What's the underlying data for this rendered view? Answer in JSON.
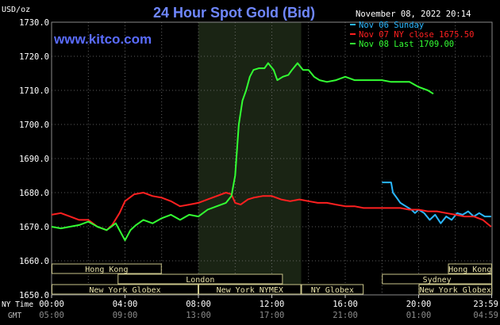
{
  "header": {
    "title": "24 Hour Spot Gold (Bid)",
    "datetime": "November 08, 2022 20:14",
    "watermark": "www.kitco.com",
    "unit_label": "USD/oz"
  },
  "legend": [
    {
      "label": "Nov 06 Sunday",
      "color": "#2ab7ff"
    },
    {
      "label": "Nov 07 NY close 1675.50",
      "color": "#ff2020"
    },
    {
      "label": "Nov 08 Last 1709.00",
      "color": "#33ff33"
    }
  ],
  "sessions": [
    {
      "name": "Hong Kong",
      "start": 0.0,
      "end": 6.0,
      "row": 0
    },
    {
      "name": "Hong Kong",
      "start": 21.6,
      "end": 24.0,
      "row": 0
    },
    {
      "name": "London",
      "start": 3.6,
      "end": 12.6,
      "row": 1
    },
    {
      "name": "Sydney",
      "start": 18.0,
      "end": 24.0,
      "row": 1
    },
    {
      "name": "New York Globex",
      "start": 0.0,
      "end": 8.0,
      "row": 2
    },
    {
      "name": "New York NYMEX",
      "start": 8.0,
      "end": 13.6,
      "row": 2
    },
    {
      "name": "NY Globex",
      "start": 13.6,
      "end": 17.0,
      "row": 2
    },
    {
      "name": "New York Globex",
      "start": 20.0,
      "end": 24.0,
      "row": 2
    }
  ],
  "time_axis": {
    "ny_label": "NY Time",
    "gmt_label": "GMT",
    "ny_ticks": [
      "00:00",
      "04:00",
      "08:00",
      "12:00",
      "16:00",
      "20:00",
      "23:59"
    ],
    "gmt_ticks": [
      "05:00",
      "09:00",
      "13:00",
      "17:00",
      "21:00",
      "01:00",
      "04:59"
    ]
  },
  "chart_data": {
    "type": "line",
    "title": "24 Hour Spot Gold (Bid)",
    "ylabel": "USD/oz",
    "xlabel": "NY Time",
    "ylim": [
      1650,
      1730
    ],
    "xlim": [
      0,
      24
    ],
    "y_ticks": [
      "1650.0",
      "1660.0",
      "1670.0",
      "1680.0",
      "1690.0",
      "1700.0",
      "1710.0",
      "1720.0",
      "1730.0"
    ],
    "grid": true,
    "legend_position": "top-right",
    "highlight_hours": [
      8.0,
      13.6
    ],
    "series": [
      {
        "name": "Nov 06 Sunday",
        "color": "#2ab7ff",
        "points": [
          [
            18.0,
            1683.0
          ],
          [
            18.5,
            1683.0
          ],
          [
            18.6,
            1680.0
          ],
          [
            18.8,
            1678.5
          ],
          [
            19.0,
            1677.0
          ],
          [
            19.3,
            1676.0
          ],
          [
            19.6,
            1675.0
          ],
          [
            19.8,
            1674.0
          ],
          [
            20.0,
            1675.0
          ],
          [
            20.3,
            1674.0
          ],
          [
            20.6,
            1672.0
          ],
          [
            20.9,
            1673.5
          ],
          [
            21.2,
            1671.0
          ],
          [
            21.5,
            1673.0
          ],
          [
            21.8,
            1672.0
          ],
          [
            22.1,
            1674.0
          ],
          [
            22.4,
            1673.5
          ],
          [
            22.7,
            1674.5
          ],
          [
            23.0,
            1673.0
          ],
          [
            23.3,
            1674.0
          ],
          [
            23.6,
            1673.0
          ],
          [
            23.95,
            1673.0
          ]
        ]
      },
      {
        "name": "Nov 07 NY close 1675.50",
        "color": "#ff2020",
        "points": [
          [
            0.0,
            1673.5
          ],
          [
            0.5,
            1674.0
          ],
          [
            1.0,
            1673.0
          ],
          [
            1.5,
            1672.0
          ],
          [
            2.0,
            1672.0
          ],
          [
            2.5,
            1670.0
          ],
          [
            3.0,
            1669.0
          ],
          [
            3.3,
            1670.5
          ],
          [
            3.7,
            1674.0
          ],
          [
            4.0,
            1677.5
          ],
          [
            4.5,
            1679.5
          ],
          [
            5.0,
            1680.0
          ],
          [
            5.5,
            1679.0
          ],
          [
            6.0,
            1678.5
          ],
          [
            6.5,
            1677.5
          ],
          [
            7.0,
            1676.0
          ],
          [
            7.5,
            1676.5
          ],
          [
            8.0,
            1677.0
          ],
          [
            8.5,
            1678.0
          ],
          [
            9.0,
            1679.0
          ],
          [
            9.5,
            1680.0
          ],
          [
            9.8,
            1679.5
          ],
          [
            10.0,
            1677.0
          ],
          [
            10.3,
            1676.5
          ],
          [
            10.7,
            1678.0
          ],
          [
            11.0,
            1678.5
          ],
          [
            11.5,
            1679.0
          ],
          [
            12.0,
            1679.0
          ],
          [
            12.5,
            1678.0
          ],
          [
            13.0,
            1677.5
          ],
          [
            13.5,
            1678.0
          ],
          [
            14.0,
            1677.5
          ],
          [
            14.5,
            1677.0
          ],
          [
            15.0,
            1677.0
          ],
          [
            15.5,
            1676.5
          ],
          [
            16.0,
            1676.0
          ],
          [
            16.5,
            1676.0
          ],
          [
            17.0,
            1675.5
          ],
          [
            17.5,
            1675.5
          ],
          [
            18.0,
            1675.5
          ],
          [
            18.5,
            1675.5
          ],
          [
            19.0,
            1675.5
          ],
          [
            19.5,
            1675.0
          ],
          [
            20.0,
            1675.0
          ],
          [
            20.5,
            1674.5
          ],
          [
            21.0,
            1674.5
          ],
          [
            21.5,
            1674.0
          ],
          [
            22.0,
            1673.5
          ],
          [
            22.5,
            1673.0
          ],
          [
            23.0,
            1673.0
          ],
          [
            23.5,
            1672.0
          ],
          [
            23.95,
            1670.0
          ]
        ]
      },
      {
        "name": "Nov 08 Last 1709.00",
        "color": "#33ff33",
        "points": [
          [
            0.0,
            1670.0
          ],
          [
            0.5,
            1669.5
          ],
          [
            1.0,
            1670.0
          ],
          [
            1.5,
            1670.5
          ],
          [
            2.0,
            1671.5
          ],
          [
            2.5,
            1670.0
          ],
          [
            3.0,
            1669.0
          ],
          [
            3.5,
            1671.0
          ],
          [
            3.8,
            1668.0
          ],
          [
            4.0,
            1666.0
          ],
          [
            4.3,
            1669.0
          ],
          [
            4.6,
            1670.5
          ],
          [
            5.0,
            1672.0
          ],
          [
            5.5,
            1671.0
          ],
          [
            6.0,
            1672.5
          ],
          [
            6.5,
            1673.5
          ],
          [
            7.0,
            1672.0
          ],
          [
            7.5,
            1673.5
          ],
          [
            8.0,
            1673.0
          ],
          [
            8.5,
            1675.0
          ],
          [
            9.0,
            1676.0
          ],
          [
            9.5,
            1677.0
          ],
          [
            9.8,
            1679.0
          ],
          [
            10.0,
            1685.0
          ],
          [
            10.2,
            1700.0
          ],
          [
            10.4,
            1707.0
          ],
          [
            10.6,
            1710.0
          ],
          [
            10.8,
            1714.0
          ],
          [
            11.0,
            1716.0
          ],
          [
            11.3,
            1716.5
          ],
          [
            11.6,
            1716.5
          ],
          [
            11.8,
            1718.0
          ],
          [
            12.1,
            1716.0
          ],
          [
            12.3,
            1713.0
          ],
          [
            12.6,
            1714.0
          ],
          [
            12.9,
            1714.5
          ],
          [
            13.1,
            1716.0
          ],
          [
            13.4,
            1718.0
          ],
          [
            13.7,
            1716.0
          ],
          [
            14.0,
            1716.0
          ],
          [
            14.3,
            1714.0
          ],
          [
            14.6,
            1713.0
          ],
          [
            15.0,
            1712.5
          ],
          [
            15.5,
            1713.0
          ],
          [
            16.0,
            1714.0
          ],
          [
            16.5,
            1713.0
          ],
          [
            17.0,
            1713.0
          ],
          [
            17.5,
            1713.0
          ],
          [
            18.0,
            1713.0
          ],
          [
            18.5,
            1712.5
          ],
          [
            19.0,
            1712.5
          ],
          [
            19.5,
            1712.5
          ],
          [
            20.0,
            1711.0
          ],
          [
            20.5,
            1710.0
          ],
          [
            20.8,
            1709.0
          ]
        ]
      }
    ]
  }
}
